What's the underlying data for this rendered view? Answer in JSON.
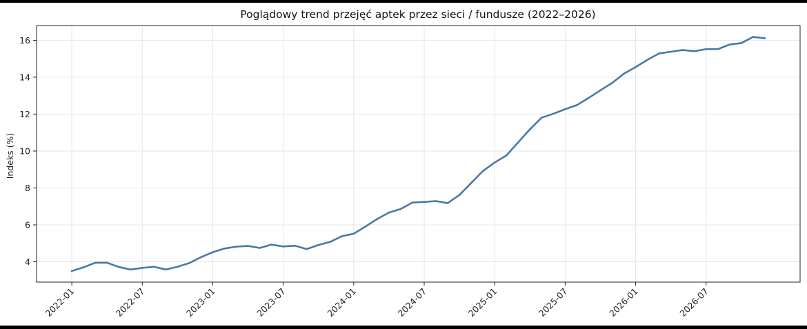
{
  "chart_data": {
    "type": "line",
    "title": "Poglądowy trend przejęć aptek przez sieci / fundusze (2022–2026)",
    "xlabel": "",
    "ylabel": "Indeks (%)",
    "ylim": [
      2.9,
      16.8
    ],
    "xlim": [
      "2021-10",
      "2027-03"
    ],
    "yticks": [
      4,
      6,
      8,
      10,
      12,
      14,
      16
    ],
    "xticks": [
      "2022-01",
      "2022-07",
      "2023-01",
      "2023-07",
      "2024-01",
      "2024-07",
      "2025-01",
      "2025-07",
      "2026-01",
      "2026-07"
    ],
    "grid": true,
    "line_color": "#4a78a8",
    "series": [
      {
        "x": [
          "2022-01",
          "2022-02",
          "2022-03",
          "2022-04",
          "2022-05",
          "2022-06",
          "2022-07",
          "2022-08",
          "2022-09",
          "2022-10",
          "2022-11",
          "2022-12",
          "2023-01",
          "2023-02",
          "2023-03",
          "2023-04",
          "2023-05",
          "2023-06",
          "2023-07",
          "2023-08",
          "2023-09",
          "2023-10",
          "2023-11",
          "2023-12",
          "2024-01",
          "2024-02",
          "2024-03",
          "2024-04",
          "2024-05",
          "2024-06",
          "2024-07",
          "2024-08",
          "2024-09",
          "2024-10",
          "2024-11",
          "2024-12",
          "2025-01",
          "2025-02",
          "2025-03",
          "2025-04",
          "2025-05",
          "2025-06",
          "2025-07",
          "2025-08",
          "2025-09",
          "2025-10",
          "2025-11",
          "2025-12",
          "2026-01",
          "2026-02",
          "2026-03",
          "2026-04",
          "2026-05",
          "2026-06",
          "2026-07",
          "2026-08",
          "2026-09",
          "2026-10",
          "2026-11",
          "2026-12"
        ],
        "values": [
          3.5,
          3.7,
          3.95,
          3.95,
          3.72,
          3.58,
          3.67,
          3.73,
          3.58,
          3.73,
          3.93,
          4.25,
          4.52,
          4.72,
          4.82,
          4.86,
          4.75,
          4.93,
          4.83,
          4.87,
          4.69,
          4.91,
          5.08,
          5.39,
          5.52,
          5.91,
          6.32,
          6.67,
          6.86,
          7.21,
          7.24,
          7.29,
          7.18,
          7.62,
          8.27,
          8.92,
          9.38,
          9.76,
          10.47,
          11.18,
          11.81,
          12.02,
          12.27,
          12.49,
          12.88,
          13.29,
          13.69,
          14.19,
          14.55,
          14.94,
          15.29,
          15.38,
          15.47,
          15.41,
          15.52,
          15.52,
          15.77,
          15.85,
          16.18,
          16.11
        ]
      }
    ]
  }
}
